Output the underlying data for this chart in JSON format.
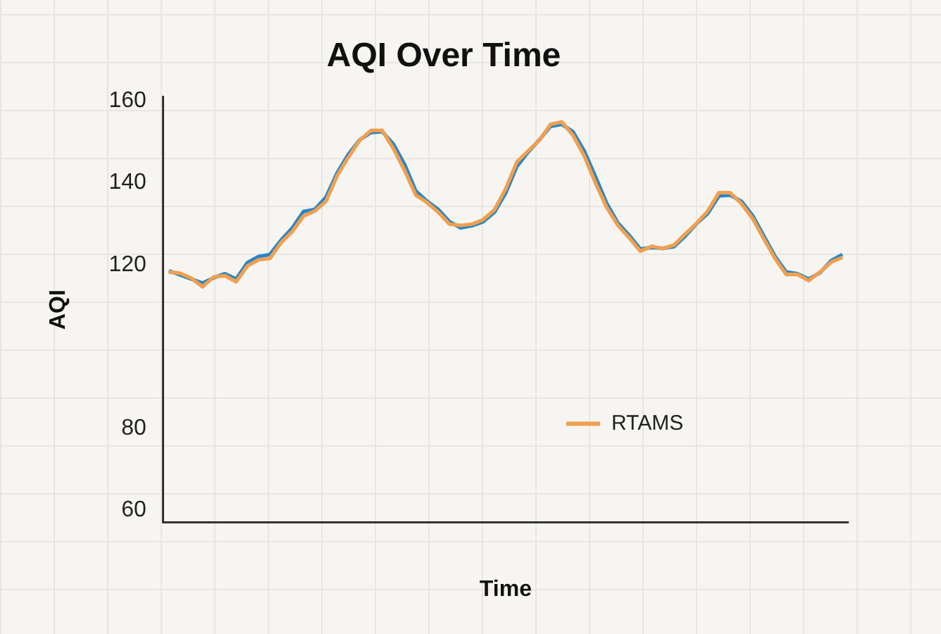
{
  "chart_data": {
    "type": "line",
    "title": "AQI Over Time",
    "xlabel": "Time",
    "ylabel": "AQI",
    "categories": [
      null,
      null,
      null,
      null,
      null,
      null,
      null,
      null,
      null,
      null,
      null,
      null,
      null,
      null,
      null,
      null,
      null,
      null,
      null,
      null,
      null,
      null,
      null,
      null,
      null,
      null,
      null,
      null,
      null,
      null,
      null,
      null,
      null,
      null,
      null,
      null,
      null,
      null,
      null,
      null,
      null,
      null,
      null,
      null,
      null,
      null,
      null,
      null,
      null,
      null,
      null,
      null,
      null,
      null,
      null,
      null,
      null,
      null,
      null,
      null,
      null
    ],
    "series": [
      {
        "color": "#2b86c5",
        "values": [
          118.5,
          117.5,
          116.5,
          115.5,
          116.8,
          117.8,
          116.5,
          120.5,
          122,
          122.5,
          126,
          129,
          133,
          133.5,
          136.5,
          142.5,
          147,
          150.5,
          152.3,
          152.5,
          149.5,
          144.5,
          138,
          135.5,
          133.5,
          130.5,
          129,
          129.5,
          130.5,
          132.8,
          137.5,
          144,
          147.5,
          150.5,
          153.8,
          154.3,
          152.5,
          147.8,
          141.5,
          135,
          130.2,
          127.2,
          123.8,
          124.2,
          124,
          124.4,
          127,
          130,
          132.5,
          136.8,
          137,
          135.5,
          132,
          127,
          122,
          118.2,
          117.8,
          116.5,
          118,
          121,
          122.5
        ]
      },
      {
        "name": "RTAMS",
        "color": "#f0a050",
        "values": [
          118.2,
          117.9,
          116.7,
          114.6,
          117.0,
          117.3,
          115.8,
          119.7,
          121.2,
          121.5,
          125.4,
          128.1,
          131.9,
          133.1,
          135.5,
          141.8,
          146.3,
          150.4,
          152.8,
          152.8,
          148.4,
          143.0,
          137.0,
          135.2,
          132.8,
          129.9,
          129.6,
          129.9,
          131.0,
          133.4,
          138.5,
          145.1,
          147.8,
          150.4,
          154.3,
          154.9,
          151.6,
          146.6,
          140.0,
          134.0,
          129.6,
          126.6,
          123.3,
          124.5,
          123.9,
          124.8,
          127.5,
          130.1,
          133.1,
          137.6,
          137.6,
          134.9,
          131.3,
          126.3,
          121.5,
          117.6,
          117.6,
          116.1,
          118.2,
          120.6,
          121.8
        ]
      }
    ],
    "ylim": [
      57,
      161
    ],
    "yticks": [
      160,
      140,
      120,
      80,
      60
    ],
    "tick_labels": "y",
    "grid": false,
    "legend": "bottom right",
    "marker": "none",
    "line_style": "solid"
  }
}
